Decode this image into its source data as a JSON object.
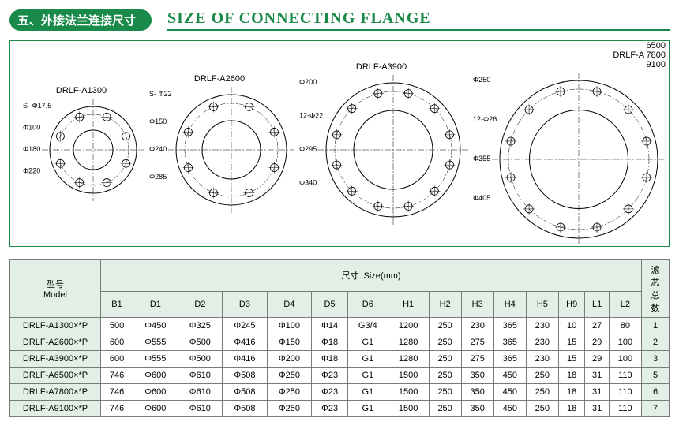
{
  "title": {
    "chinese": "五、外接法兰连接尺寸",
    "english": "SIZE OF CONNECTING FLANGE"
  },
  "flanges": [
    {
      "name": "DRLF-A1300",
      "outer": 110,
      "bolt_circle": 90,
      "inner": 50,
      "holes": 8,
      "labels": [
        "S- Φ17.5",
        "Φ100",
        "Φ180",
        "Φ220"
      ]
    },
    {
      "name": "DRLF-A2600",
      "outer": 140,
      "bolt_circle": 118,
      "inner": 74,
      "holes": 8,
      "labels": [
        "S- Φ22",
        "Φ150",
        "Φ240",
        "Φ285"
      ]
    },
    {
      "name": "DRLF-A3900",
      "outer": 170,
      "bolt_circle": 148,
      "inner": 100,
      "holes": 12,
      "labels": [
        "Φ200",
        "12-Φ22",
        "Φ295",
        "Φ340"
      ]
    },
    {
      "name": "DRLF-A 6500 7800 9100",
      "outer": 200,
      "bolt_circle": 178,
      "inner": 125,
      "holes": 12,
      "labels": [
        "Φ250",
        "12-Φ26",
        "Φ355",
        "Φ405"
      ]
    }
  ],
  "table": {
    "header_model_cn": "型号",
    "header_model_en": "Model",
    "header_size_cn": "尺寸",
    "header_size_en": "Size(mm)",
    "header_filter_cn": "滤芯总数",
    "columns": [
      "B1",
      "D1",
      "D2",
      "D3",
      "D4",
      "D5",
      "D6",
      "H1",
      "H2",
      "H3",
      "H4",
      "H5",
      "H9",
      "L1",
      "L2"
    ],
    "rows": [
      {
        "model": "DRLF-A1300×*P",
        "v": [
          "500",
          "Φ450",
          "Φ325",
          "Φ245",
          "Φ100",
          "Φ14",
          "G3/4",
          "1200",
          "250",
          "230",
          "365",
          "230",
          "10",
          "27",
          "80"
        ],
        "filters": "1"
      },
      {
        "model": "DRLF-A2600×*P",
        "v": [
          "600",
          "Φ555",
          "Φ500",
          "Φ416",
          "Φ150",
          "Φ18",
          "G1",
          "1280",
          "250",
          "275",
          "365",
          "230",
          "15",
          "29",
          "100"
        ],
        "filters": "2"
      },
      {
        "model": "DRLF-A3900×*P",
        "v": [
          "600",
          "Φ555",
          "Φ500",
          "Φ416",
          "Φ200",
          "Φ18",
          "G1",
          "1280",
          "250",
          "275",
          "365",
          "230",
          "15",
          "29",
          "100"
        ],
        "filters": "3"
      },
      {
        "model": "DRLF-A6500×*P",
        "v": [
          "746",
          "Φ600",
          "Φ610",
          "Φ508",
          "Φ250",
          "Φ23",
          "G1",
          "1500",
          "250",
          "350",
          "450",
          "250",
          "18",
          "31",
          "110"
        ],
        "filters": "5"
      },
      {
        "model": "DRLF-A7800×*P",
        "v": [
          "746",
          "Φ600",
          "Φ610",
          "Φ508",
          "Φ250",
          "Φ23",
          "G1",
          "1500",
          "250",
          "350",
          "450",
          "250",
          "18",
          "31",
          "110"
        ],
        "filters": "6"
      },
      {
        "model": "DRLF-A9100×*P",
        "v": [
          "746",
          "Φ600",
          "Φ610",
          "Φ508",
          "Φ250",
          "Φ23",
          "G1",
          "1500",
          "250",
          "350",
          "450",
          "250",
          "18",
          "31",
          "110"
        ],
        "filters": "7"
      }
    ]
  },
  "style": {
    "accent": "#1a8a4a",
    "header_bg": "#e2efe6",
    "border": "#7a7a7a",
    "stroke": "#000000"
  }
}
